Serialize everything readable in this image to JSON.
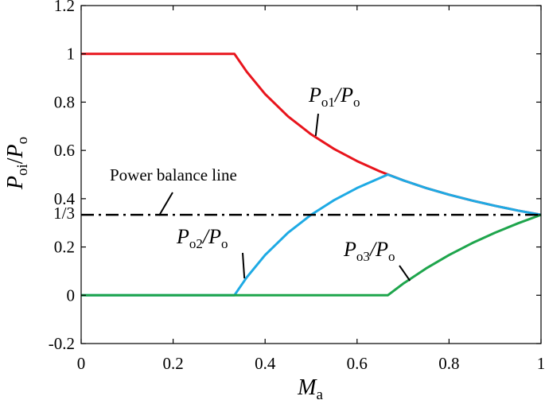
{
  "chart_data": {
    "type": "line",
    "title": "",
    "xlabel": {
      "main": "M",
      "sub": "a"
    },
    "ylabel": {
      "p1": "P",
      "s1": "o",
      "s2": "i",
      "slash": "/",
      "p2": "P",
      "s3": "o"
    },
    "xlim": [
      0,
      1
    ],
    "ylim": [
      -0.2,
      1.2
    ],
    "xticks": [
      {
        "v": 0,
        "label": "0"
      },
      {
        "v": 0.2,
        "label": "0.2"
      },
      {
        "v": 0.4,
        "label": "0.4"
      },
      {
        "v": 0.6,
        "label": "0.6"
      },
      {
        "v": 0.8,
        "label": "0.8"
      },
      {
        "v": 1,
        "label": "1"
      }
    ],
    "yticks": [
      {
        "v": -0.2,
        "label": "-0.2"
      },
      {
        "v": 0,
        "label": "0"
      },
      {
        "v": 0.2,
        "label": "0.2"
      },
      {
        "v": 0.3333,
        "label": "1/3"
      },
      {
        "v": 0.4,
        "label": "0.4"
      },
      {
        "v": 0.6,
        "label": "0.6"
      },
      {
        "v": 0.8,
        "label": "0.8"
      },
      {
        "v": 1,
        "label": "1"
      },
      {
        "v": 1.2,
        "label": "1.2"
      }
    ],
    "grid": false,
    "series": [
      {
        "color": "#e8141c",
        "points": [
          [
            0,
            1
          ],
          [
            0.3333,
            1
          ],
          [
            0.36,
            0.9259
          ],
          [
            0.4,
            0.8333
          ],
          [
            0.45,
            0.7407
          ],
          [
            0.5,
            0.6667
          ],
          [
            0.55,
            0.6061
          ],
          [
            0.6,
            0.5556
          ],
          [
            0.65,
            0.5128
          ],
          [
            0.7,
            0.4762
          ],
          [
            0.75,
            0.4444
          ],
          [
            0.8,
            0.4167
          ],
          [
            0.85,
            0.3922
          ],
          [
            0.9,
            0.3704
          ],
          [
            0.95,
            0.3509
          ],
          [
            1,
            0.3333
          ]
        ]
      },
      {
        "color": "#1eaae4",
        "points": [
          [
            0,
            0
          ],
          [
            0.3333,
            0
          ],
          [
            0.36,
            0.0741
          ],
          [
            0.4,
            0.1667
          ],
          [
            0.45,
            0.2593
          ],
          [
            0.5,
            0.3333
          ],
          [
            0.55,
            0.3939
          ],
          [
            0.6,
            0.4444
          ],
          [
            0.6667,
            0.5
          ],
          [
            0.7,
            0.4762
          ],
          [
            0.75,
            0.4444
          ],
          [
            0.8,
            0.4167
          ],
          [
            0.85,
            0.3922
          ],
          [
            0.9,
            0.3704
          ],
          [
            0.95,
            0.3509
          ],
          [
            1,
            0.3333
          ]
        ]
      },
      {
        "color": "#1ea54c",
        "points": [
          [
            0,
            0
          ],
          [
            0.6667,
            0
          ],
          [
            0.7,
            0.0476
          ],
          [
            0.75,
            0.1111
          ],
          [
            0.8,
            0.1667
          ],
          [
            0.85,
            0.2157
          ],
          [
            0.9,
            0.2593
          ],
          [
            0.95,
            0.2982
          ],
          [
            1,
            0.3333
          ]
        ]
      }
    ],
    "reference_line": {
      "y": 0.3333,
      "label": "Power balance line",
      "style": "dash-dot",
      "color": "#000000"
    },
    "annotations": [
      {
        "p": "P",
        "sub": "o1",
        "tail": "/P",
        "sub2": "o",
        "target": [
          0.51,
          0.66
        ]
      },
      {
        "p": "P",
        "sub": "o2",
        "tail": "/P",
        "sub2": "o",
        "target": [
          0.355,
          0.07
        ]
      },
      {
        "p": "P",
        "sub": "o3",
        "tail": "/P",
        "sub2": "o",
        "target": [
          0.715,
          0.06
        ]
      }
    ]
  }
}
